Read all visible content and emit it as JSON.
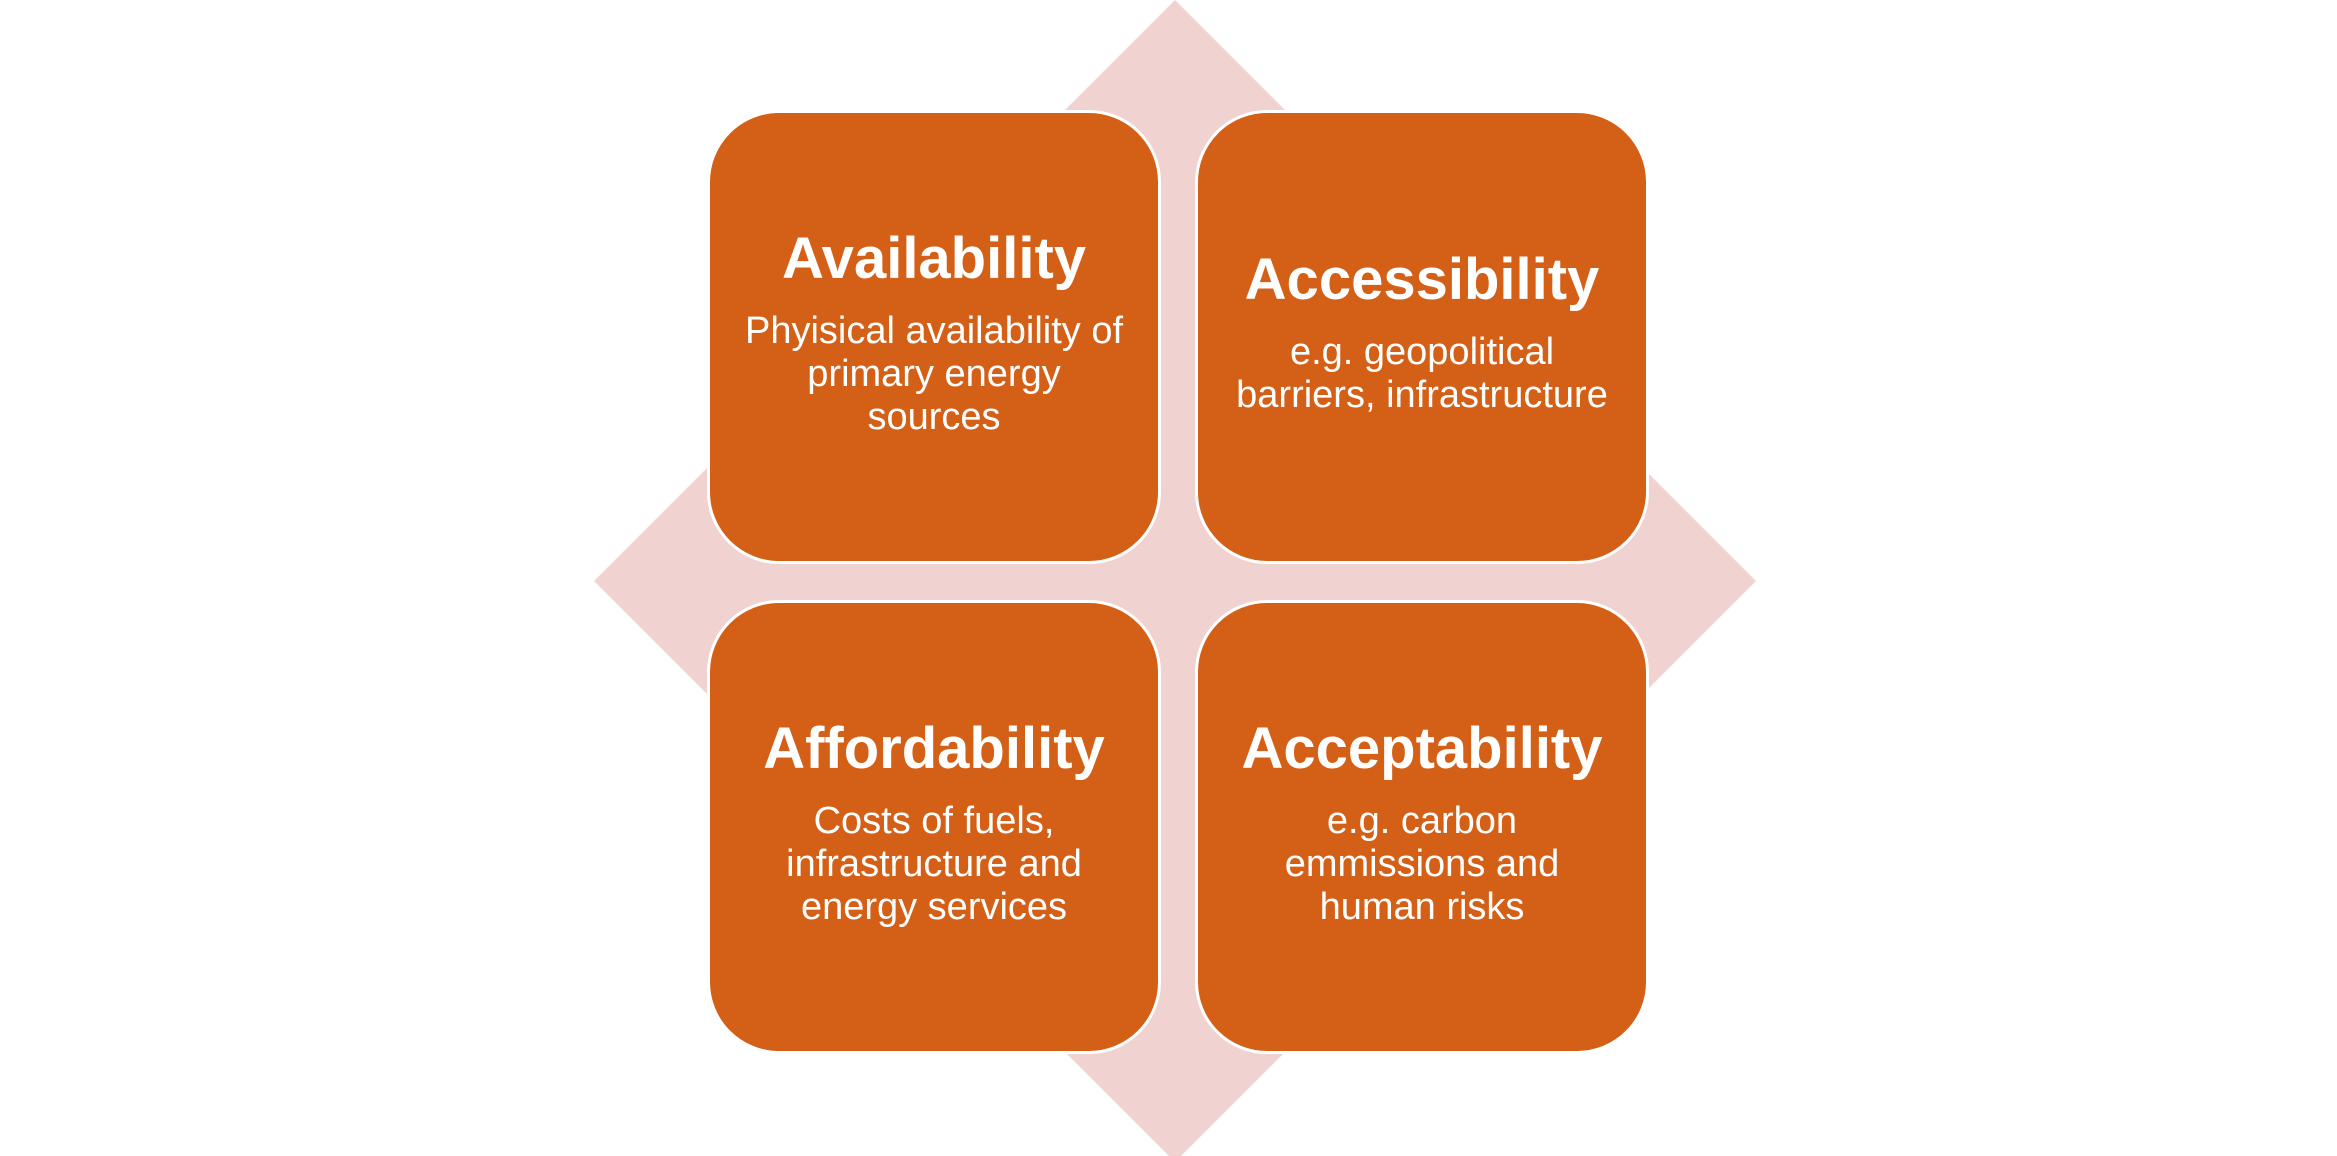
{
  "colors": {
    "diamond": "#f0d3d0",
    "card": "#d45f16",
    "text": "#ffffff"
  },
  "cards": [
    {
      "title": "Availability",
      "description": "Phyisical availability of primary energy sources"
    },
    {
      "title": "Accessibility",
      "description": "e.g. geopolitical barriers, infrastructure"
    },
    {
      "title": "Affordability",
      "description": "Costs of fuels, infrastructure and energy services"
    },
    {
      "title": "Acceptability",
      "description": "e.g. carbon emmissions and human risks"
    }
  ]
}
